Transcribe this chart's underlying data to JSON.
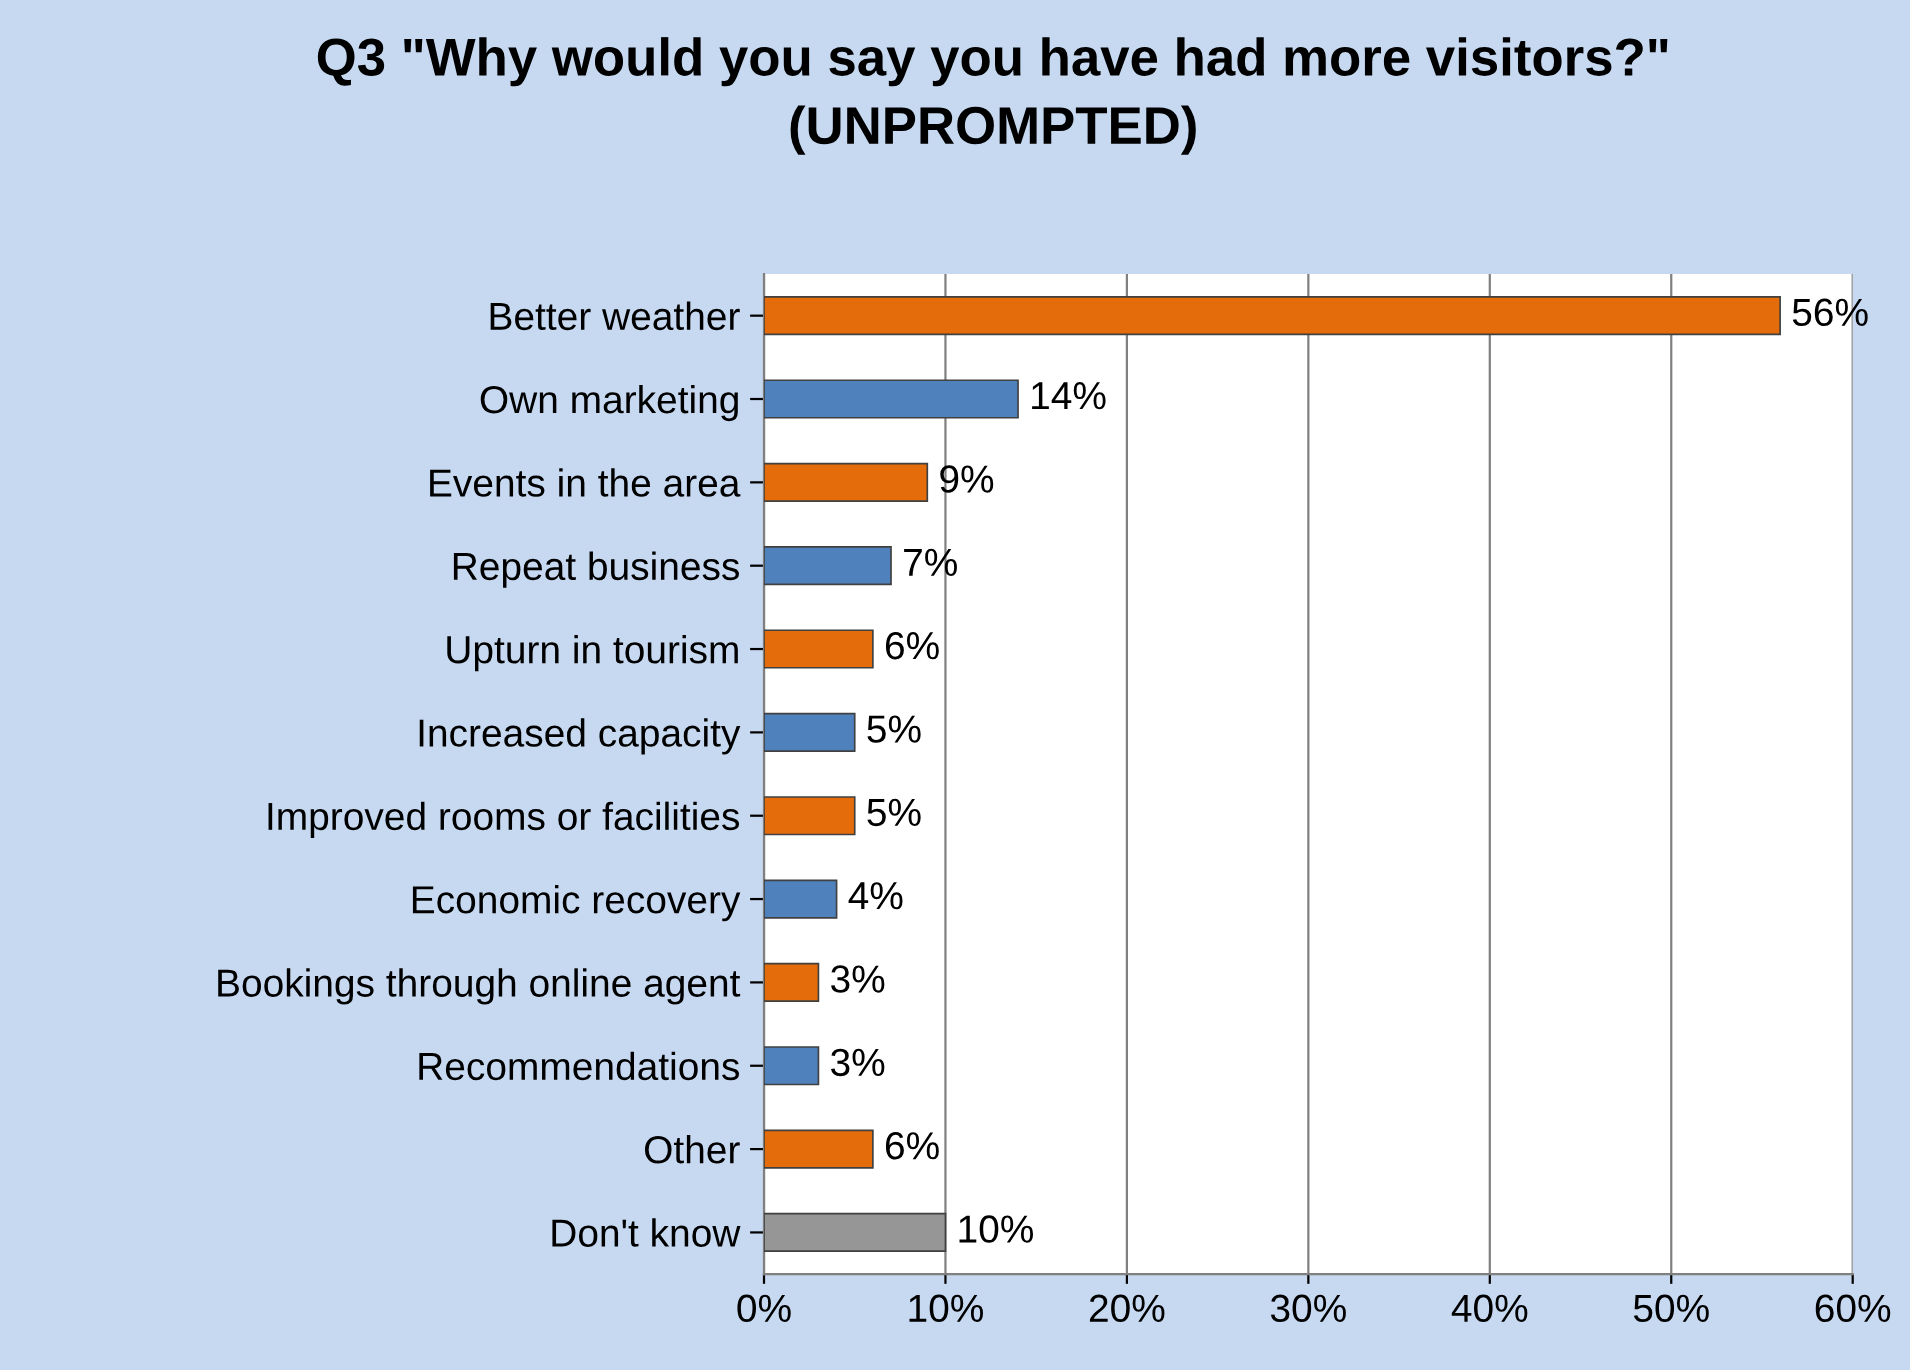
{
  "chart_data": {
    "type": "bar",
    "orientation": "horizontal",
    "title": "Q3 \"Why would you say you have had more visitors?\"\n(UNPROMPTED)",
    "categories": [
      "Better weather",
      "Own marketing",
      "Events in the area",
      "Repeat business",
      "Upturn in tourism",
      "Increased capacity",
      "Improved rooms or facilities",
      "Economic recovery",
      "Bookings through online agent",
      "Recommendations",
      "Other",
      "Don't know"
    ],
    "values": [
      56,
      14,
      9,
      7,
      6,
      5,
      5,
      4,
      3,
      3,
      6,
      10
    ],
    "colors": [
      "#e46c0a",
      "#4f81bd",
      "#e46c0a",
      "#4f81bd",
      "#e46c0a",
      "#4f81bd",
      "#e46c0a",
      "#4f81bd",
      "#e46c0a",
      "#4f81bd",
      "#e46c0a",
      "#969696"
    ],
    "value_labels": [
      "56%",
      "14%",
      "9%",
      "7%",
      "6%",
      "5%",
      "5%",
      "4%",
      "3%",
      "3%",
      "6%",
      "10%"
    ],
    "xlim": [
      0,
      60
    ],
    "xticks": [
      {
        "value": 0,
        "label": "0%"
      },
      {
        "value": 10,
        "label": "10%"
      },
      {
        "value": 20,
        "label": "20%"
      },
      {
        "value": 30,
        "label": "30%"
      },
      {
        "value": 40,
        "label": "40%"
      },
      {
        "value": 50,
        "label": "50%"
      },
      {
        "value": 60,
        "label": "60%"
      }
    ],
    "grid": "x"
  }
}
